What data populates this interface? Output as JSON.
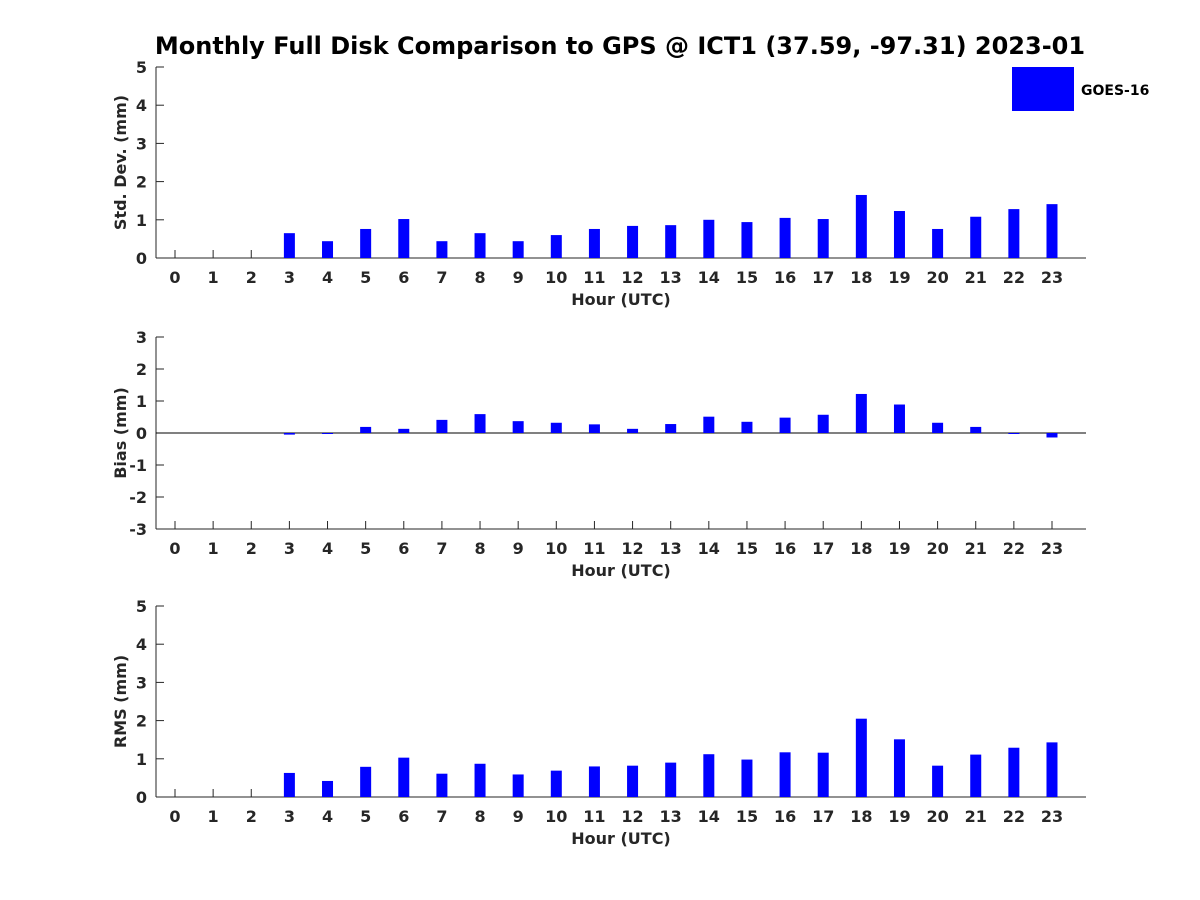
{
  "chart_data": {
    "type": "bar",
    "title": "Monthly Full Disk Comparison to GPS @ ICT1 (37.59, -97.31) 2023-01",
    "legend": {
      "placement": "top-right",
      "entries": [
        {
          "label": "GOES-16",
          "color": "#0000ff"
        }
      ]
    },
    "categories": [
      "0",
      "1",
      "2",
      "3",
      "4",
      "5",
      "6",
      "7",
      "8",
      "9",
      "10",
      "11",
      "12",
      "13",
      "14",
      "15",
      "16",
      "17",
      "18",
      "19",
      "20",
      "21",
      "22",
      "23"
    ],
    "panels": [
      {
        "ylabel": "Std. Dev. (mm)",
        "xlabel": "Hour (UTC)",
        "ylim": [
          0,
          5
        ],
        "yticks": [
          0,
          1,
          2,
          3,
          4,
          5
        ],
        "zero_line": false,
        "series": [
          {
            "name": "GOES-16",
            "color": "#0000ff",
            "values": [
              null,
              null,
              null,
              0.65,
              0.44,
              0.76,
              1.02,
              0.44,
              0.65,
              0.44,
              0.6,
              0.76,
              0.84,
              0.86,
              1.0,
              0.94,
              1.05,
              1.02,
              1.65,
              1.23,
              0.76,
              1.08,
              1.28,
              1.41
            ]
          }
        ]
      },
      {
        "ylabel": "Bias (mm)",
        "xlabel": "Hour (UTC)",
        "ylim": [
          -3,
          3
        ],
        "yticks": [
          -3,
          -2,
          -1,
          0,
          1,
          2,
          3
        ],
        "zero_line": true,
        "series": [
          {
            "name": "GOES-16",
            "color": "#0000ff",
            "values": [
              null,
              null,
              null,
              -0.05,
              -0.02,
              0.19,
              0.13,
              0.41,
              0.59,
              0.37,
              0.32,
              0.27,
              0.13,
              0.28,
              0.51,
              0.35,
              0.48,
              0.57,
              1.22,
              0.89,
              0.32,
              0.19,
              0.0,
              -0.14
            ]
          }
        ]
      },
      {
        "ylabel": "RMS (mm)",
        "xlabel": "Hour (UTC)",
        "ylim": [
          0,
          5
        ],
        "yticks": [
          0,
          1,
          2,
          3,
          4,
          5
        ],
        "zero_line": false,
        "series": [
          {
            "name": "GOES-16",
            "color": "#0000ff",
            "values": [
              null,
              null,
              null,
              0.63,
              0.42,
              0.79,
              1.03,
              0.61,
              0.87,
              0.59,
              0.69,
              0.8,
              0.82,
              0.9,
              1.12,
              0.98,
              1.17,
              1.16,
              2.05,
              1.51,
              0.82,
              1.11,
              1.29,
              1.43
            ]
          }
        ]
      }
    ]
  }
}
